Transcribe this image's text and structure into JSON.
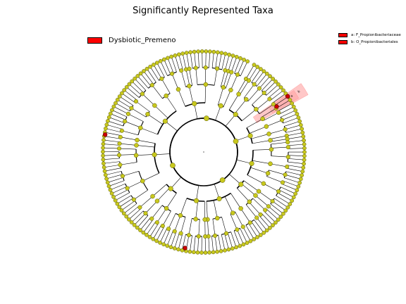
{
  "title": "Significantly Represented Taxa",
  "class_legend": {
    "label": "Dysbiotic_Premeno",
    "color": "#ff0000"
  },
  "clade_legend": [
    {
      "key": "a",
      "label": "a: F_Propionibacteriaceae",
      "color": "#ff0000"
    },
    {
      "key": "b",
      "label": "b: O_Propionibacteriales",
      "color": "#ff0000"
    }
  ],
  "colors": {
    "neutral_node": "#c8c81e",
    "node_edge": "#555500",
    "significant_node": "#cc0000",
    "highlight": "#ff9999",
    "ring": "#000000"
  },
  "highlighted_clades": [
    "a",
    "b"
  ],
  "significant_node_count": 4
}
